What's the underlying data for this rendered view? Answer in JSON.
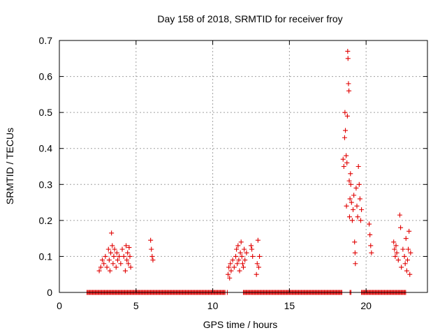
{
  "chart_data": {
    "type": "scatter",
    "title": "Day 158 of 2018, SRMTID for receiver froy",
    "xlabel": "GPS time / hours",
    "ylabel": "SRMTID / TECUs",
    "xlim": [
      0,
      24
    ],
    "ylim": [
      0,
      0.7
    ],
    "xticks": [
      0,
      5,
      10,
      15,
      20
    ],
    "xtick_labels": [
      "0",
      "5",
      "10",
      "15",
      "20"
    ],
    "yticks": [
      0,
      0.1,
      0.2,
      0.3,
      0.4,
      0.5,
      0.6,
      0.7
    ],
    "ytick_labels": [
      "0",
      "0.1",
      "0.2",
      "0.3",
      "0.4",
      "0.5",
      "0.6",
      "0.7"
    ],
    "grid": true,
    "marker": "plus",
    "series": [
      {
        "name": "SRMTID",
        "color": "#e00000",
        "points": [
          [
            2.6,
            0.06
          ],
          [
            2.7,
            0.07
          ],
          [
            2.8,
            0.09
          ],
          [
            2.9,
            0.08
          ],
          [
            3.0,
            0.1
          ],
          [
            3.1,
            0.07
          ],
          [
            3.2,
            0.12
          ],
          [
            3.25,
            0.09
          ],
          [
            3.3,
            0.06
          ],
          [
            3.35,
            0.11
          ],
          [
            3.4,
            0.165
          ],
          [
            3.45,
            0.13
          ],
          [
            3.5,
            0.08
          ],
          [
            3.55,
            0.1
          ],
          [
            3.6,
            0.12
          ],
          [
            3.7,
            0.07
          ],
          [
            3.75,
            0.11
          ],
          [
            3.8,
            0.09
          ],
          [
            3.9,
            0.1
          ],
          [
            4.0,
            0.08
          ],
          [
            4.1,
            0.12
          ],
          [
            4.2,
            0.1
          ],
          [
            4.3,
            0.06
          ],
          [
            4.35,
            0.13
          ],
          [
            4.4,
            0.09
          ],
          [
            4.45,
            0.11
          ],
          [
            4.5,
            0.08
          ],
          [
            4.55,
            0.125
          ],
          [
            4.6,
            0.1
          ],
          [
            4.65,
            0.07
          ],
          [
            5.95,
            0.145
          ],
          [
            6.0,
            0.12
          ],
          [
            6.05,
            0.1
          ],
          [
            6.1,
            0.09
          ],
          [
            11.0,
            0.05
          ],
          [
            11.05,
            0.07
          ],
          [
            11.1,
            0.04
          ],
          [
            11.15,
            0.08
          ],
          [
            11.2,
            0.06
          ],
          [
            11.3,
            0.09
          ],
          [
            11.4,
            0.07
          ],
          [
            11.5,
            0.1
          ],
          [
            11.55,
            0.12
          ],
          [
            11.6,
            0.08
          ],
          [
            11.65,
            0.13
          ],
          [
            11.7,
            0.09
          ],
          [
            11.75,
            0.06
          ],
          [
            11.8,
            0.11
          ],
          [
            11.85,
            0.14
          ],
          [
            11.9,
            0.1
          ],
          [
            11.95,
            0.08
          ],
          [
            12.0,
            0.07
          ],
          [
            12.05,
            0.12
          ],
          [
            12.1,
            0.09
          ],
          [
            12.2,
            0.11
          ],
          [
            12.5,
            0.13
          ],
          [
            12.55,
            0.12
          ],
          [
            12.6,
            0.1
          ],
          [
            12.85,
            0.05
          ],
          [
            12.9,
            0.08
          ],
          [
            12.95,
            0.145
          ],
          [
            13.0,
            0.07
          ],
          [
            13.05,
            0.1
          ],
          [
            18.5,
            0.37
          ],
          [
            18.55,
            0.35
          ],
          [
            18.6,
            0.43
          ],
          [
            18.62,
            0.5
          ],
          [
            18.65,
            0.45
          ],
          [
            18.7,
            0.38
          ],
          [
            18.72,
            0.24
          ],
          [
            18.75,
            0.36
          ],
          [
            18.78,
            0.49
          ],
          [
            18.8,
            0.67
          ],
          [
            18.82,
            0.65
          ],
          [
            18.85,
            0.58
          ],
          [
            18.88,
            0.56
          ],
          [
            18.9,
            0.31
          ],
          [
            18.92,
            0.21
          ],
          [
            18.95,
            0.26
          ],
          [
            18.98,
            0.33
          ],
          [
            19.0,
            0.3
          ],
          [
            19.05,
            0.25
          ],
          [
            19.1,
            0.2
          ],
          [
            19.15,
            0.23
          ],
          [
            19.2,
            0.27
          ],
          [
            19.25,
            0.14
          ],
          [
            19.28,
            0.11
          ],
          [
            19.3,
            0.08
          ],
          [
            19.35,
            0.29
          ],
          [
            19.4,
            0.24
          ],
          [
            19.45,
            0.21
          ],
          [
            19.5,
            0.35
          ],
          [
            19.55,
            0.3
          ],
          [
            19.6,
            0.26
          ],
          [
            19.65,
            0.2
          ],
          [
            19.7,
            0.23
          ],
          [
            20.2,
            0.19
          ],
          [
            20.25,
            0.16
          ],
          [
            20.3,
            0.13
          ],
          [
            20.35,
            0.11
          ],
          [
            21.8,
            0.14
          ],
          [
            21.85,
            0.12
          ],
          [
            21.9,
            0.1
          ],
          [
            21.95,
            0.13
          ],
          [
            22.0,
            0.11
          ],
          [
            22.1,
            0.09
          ],
          [
            22.2,
            0.215
          ],
          [
            22.25,
            0.18
          ],
          [
            22.3,
            0.07
          ],
          [
            22.4,
            0.12
          ],
          [
            22.5,
            0.1
          ],
          [
            22.55,
            0.08
          ],
          [
            22.6,
            0.15
          ],
          [
            22.65,
            0.06
          ],
          [
            22.7,
            0.09
          ],
          [
            22.75,
            0.12
          ],
          [
            22.8,
            0.17
          ],
          [
            22.85,
            0.05
          ],
          [
            22.9,
            0.11
          ]
        ],
        "zero_value_x_ranges": [
          [
            1.8,
            10.85
          ],
          [
            10.95,
            11.0
          ],
          [
            12.0,
            18.45
          ],
          [
            18.95,
            19.05
          ],
          [
            19.7,
            22.6
          ]
        ]
      }
    ]
  }
}
